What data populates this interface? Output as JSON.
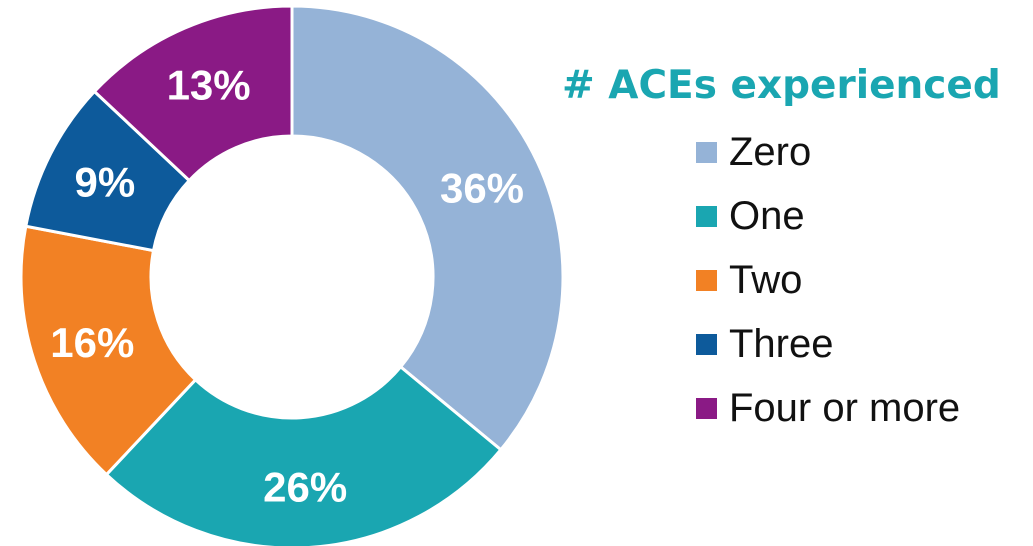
{
  "chart_data": {
    "type": "pie",
    "variant": "donut",
    "title": "# ACEs experienced",
    "categories": [
      "Zero",
      "One",
      "Two",
      "Three",
      "Four or more"
    ],
    "values": [
      36,
      26,
      16,
      9,
      13
    ],
    "value_labels": [
      "36%",
      "26%",
      "16%",
      "9%",
      "13%"
    ],
    "colors": [
      "#95B3D7",
      "#1AA6B1",
      "#F28124",
      "#0D5A9B",
      "#8A1A85"
    ],
    "legend_position": "right",
    "start_angle": "12 o'clock",
    "direction": "clockwise"
  }
}
